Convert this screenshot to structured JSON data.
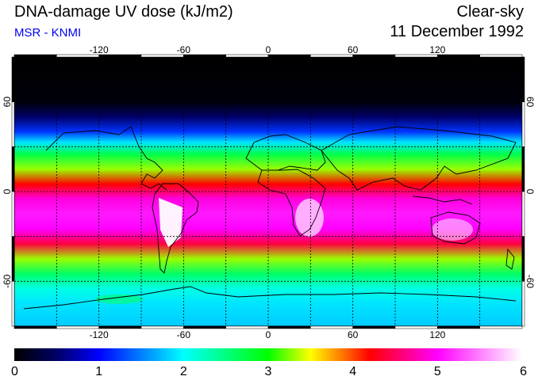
{
  "header": {
    "title": "DNA-damage UV dose (kJ/m2)",
    "source": "MSR - KNMI",
    "condition": "Clear-sky",
    "date": "11 December 1992"
  },
  "map": {
    "lon_range": [
      -180,
      180
    ],
    "lat_range": [
      -90,
      90
    ],
    "lon_ticks": [
      "-120",
      "-60",
      "0",
      "60",
      "120"
    ],
    "lat_ticks": [
      "60",
      "0",
      "-60"
    ],
    "lon_tick_values": [
      -120,
      -60,
      0,
      60,
      120
    ],
    "lat_tick_values": [
      60,
      0,
      -60
    ],
    "gridline_lons": [
      -150,
      -120,
      -90,
      -60,
      -30,
      0,
      30,
      60,
      90,
      120,
      150
    ],
    "gridline_lats": [
      60,
      30,
      0,
      -30,
      -60
    ],
    "dose_profile": [
      {
        "lat": 90,
        "dose": 0.0
      },
      {
        "lat": 60,
        "dose": 0.05
      },
      {
        "lat": 50,
        "dose": 0.5
      },
      {
        "lat": 40,
        "dose": 1.2
      },
      {
        "lat": 33,
        "dose": 1.9
      },
      {
        "lat": 25,
        "dose": 2.7
      },
      {
        "lat": 15,
        "dose": 3.3
      },
      {
        "lat": 5,
        "dose": 4.2
      },
      {
        "lat": -5,
        "dose": 4.9
      },
      {
        "lat": -15,
        "dose": 5.1
      },
      {
        "lat": -25,
        "dose": 5.0
      },
      {
        "lat": -35,
        "dose": 4.4
      },
      {
        "lat": -45,
        "dose": 3.3
      },
      {
        "lat": -55,
        "dose": 2.6
      },
      {
        "lat": -65,
        "dose": 2.1
      },
      {
        "lat": -75,
        "dose": 1.9
      },
      {
        "lat": -90,
        "dose": 1.8
      }
    ],
    "colors": {
      "black": "#000000",
      "navy": "#000044",
      "blue": "#0000ff",
      "cyan": "#00ffff",
      "green": "#00ff00",
      "yellow": "#ffff00",
      "red": "#ff0000",
      "magenta": "#ff00ff",
      "white": "#ffffff"
    }
  },
  "colorbar": {
    "min": 0,
    "max": 6,
    "labels": [
      "0",
      "1",
      "2",
      "3",
      "4",
      "5",
      "6"
    ],
    "stops": [
      {
        "value": 0,
        "color": "#000000"
      },
      {
        "value": 0.5,
        "color": "#000066"
      },
      {
        "value": 1,
        "color": "#0000ff"
      },
      {
        "value": 2,
        "color": "#00ffff"
      },
      {
        "value": 3,
        "color": "#00ff00"
      },
      {
        "value": 3.5,
        "color": "#ffff00"
      },
      {
        "value": 4.2,
        "color": "#ff0000"
      },
      {
        "value": 5,
        "color": "#ff00ff"
      },
      {
        "value": 6,
        "color": "#ffffff"
      }
    ]
  }
}
